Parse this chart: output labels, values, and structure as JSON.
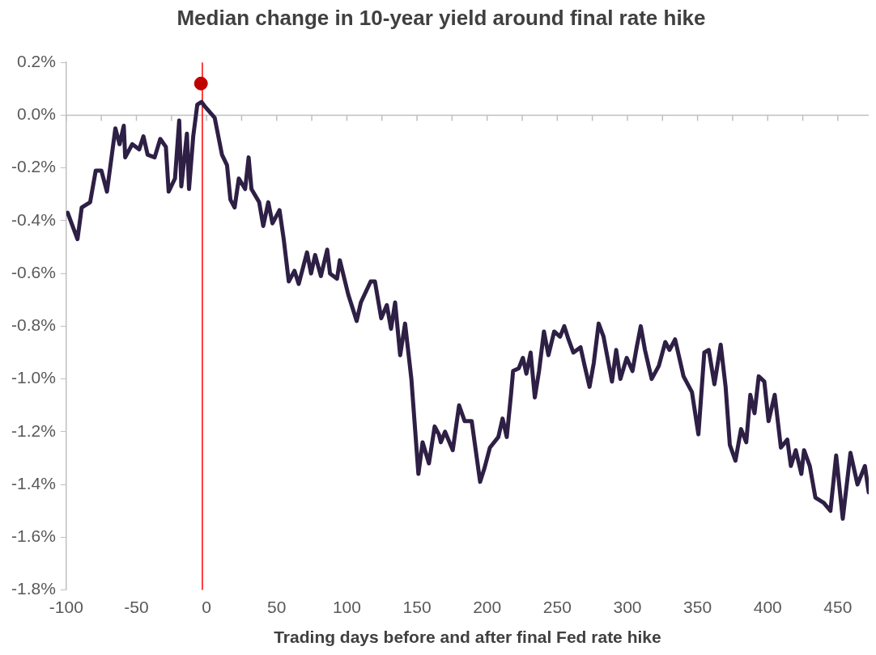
{
  "chart_data": {
    "type": "line",
    "title": "Median change in 10-year yield around final rate hike",
    "xlabel": "Trading days before and after final Fed rate hike",
    "xlim": [
      -100,
      472
    ],
    "ylim": [
      -1.8,
      0.2
    ],
    "xticks": [
      -100,
      {
        "value": -75,
        "label": null
      },
      -50,
      {
        "value": -25,
        "label": null
      },
      0,
      {
        "value": 25,
        "label": null
      },
      50,
      {
        "value": 75,
        "label": null
      },
      100,
      {
        "value": 125,
        "label": null
      },
      150,
      {
        "value": 175,
        "label": null
      },
      200,
      {
        "value": 225,
        "label": null
      },
      250,
      {
        "value": 275,
        "label": null
      },
      300,
      {
        "value": 325,
        "label": null
      },
      350,
      {
        "value": 375,
        "label": null
      },
      400,
      {
        "value": 425,
        "label": null
      },
      450
    ],
    "yticks": [
      {
        "value": 0.2,
        "label": "0.2%"
      },
      {
        "value": 0,
        "label": "0.0%"
      },
      {
        "value": -0.2,
        "label": "-0.2%"
      },
      {
        "value": -0.4,
        "label": "-0.4%"
      },
      {
        "value": -0.6,
        "label": "-0.6%"
      },
      {
        "value": -0.8,
        "label": "-0.8%"
      },
      {
        "value": -1.0,
        "label": "-1.0%"
      },
      {
        "value": -1.2,
        "label": "-1.2%"
      },
      {
        "value": -1.4,
        "label": "-1.4%"
      },
      {
        "value": -1.6,
        "label": "-1.6%"
      },
      {
        "value": -1.8,
        "label": "-1.8%"
      }
    ],
    "legend": false,
    "marker": "none",
    "line_style": "solid",
    "ref_lines": [
      {
        "axis": "y",
        "value": 0,
        "color": "#bfbfbf"
      },
      {
        "axis": "x",
        "value": -3,
        "color": "#ff0000"
      }
    ],
    "series": [
      {
        "color": "#2e1f45",
        "x": [
          -99,
          -92,
          -89,
          -83,
          -79,
          -75,
          -71,
          -65,
          -62,
          -59,
          -58,
          -53,
          -48,
          -45,
          -42,
          -37,
          -33,
          -29,
          -27,
          -22.5,
          -19.5,
          -18,
          -14,
          -12.5,
          -9.5,
          -6.6,
          -3.6,
          -0.7,
          5.8,
          11,
          14.6,
          17,
          20,
          23,
          27.5,
          30,
          32,
          37.5,
          40.4,
          44,
          47,
          52,
          55,
          58.6,
          62.7,
          65.7,
          71.6,
          74.5,
          77.4,
          81.5,
          86,
          88,
          93,
          95,
          101,
          107,
          110,
          117,
          120,
          124.5,
          128.5,
          131.5,
          134.4,
          138,
          141.5,
          146,
          151,
          154,
          158.5,
          162.6,
          165.6,
          167,
          170,
          175.5,
          180,
          184,
          189,
          195,
          198,
          202,
          208,
          211,
          214,
          217,
          218.5,
          222.5,
          225.5,
          228,
          231,
          234,
          237,
          240.5,
          243.7,
          247.8,
          252,
          255,
          258,
          261.5,
          266.6,
          269.5,
          273,
          276,
          279.5,
          283,
          289,
          292,
          295,
          299.5,
          303.6,
          306.6,
          309.5,
          312.5,
          317.3,
          322.4,
          327,
          330,
          334,
          340,
          346,
          350.6,
          354.8,
          358,
          362,
          366.5,
          370,
          373,
          377,
          381,
          384.7,
          387.6,
          390.6,
          393.6,
          397.6,
          400.6,
          405,
          409.4,
          414,
          416.5,
          420,
          424,
          425.9,
          430,
          434,
          440,
          444.7,
          448.8,
          453.5,
          459,
          464,
          469.3,
          472
        ],
        "values": [
          -0.37,
          -0.47,
          -0.35,
          -0.33,
          -0.21,
          -0.21,
          -0.29,
          -0.05,
          -0.11,
          -0.04,
          -0.16,
          -0.11,
          -0.13,
          -0.08,
          -0.15,
          -0.16,
          -0.09,
          -0.12,
          -0.29,
          -0.24,
          -0.02,
          -0.27,
          -0.07,
          -0.28,
          -0.08,
          0.04,
          0.05,
          0.03,
          -0.01,
          -0.15,
          -0.19,
          -0.32,
          -0.35,
          -0.24,
          -0.28,
          -0.16,
          -0.28,
          -0.33,
          -0.42,
          -0.33,
          -0.41,
          -0.36,
          -0.47,
          -0.63,
          -0.59,
          -0.64,
          -0.52,
          -0.6,
          -0.53,
          -0.61,
          -0.51,
          -0.6,
          -0.62,
          -0.55,
          -0.68,
          -0.78,
          -0.71,
          -0.63,
          -0.63,
          -0.77,
          -0.72,
          -0.81,
          -0.71,
          -0.91,
          -0.79,
          -1.0,
          -1.36,
          -1.24,
          -1.32,
          -1.18,
          -1.21,
          -1.24,
          -1.2,
          -1.27,
          -1.1,
          -1.16,
          -1.16,
          -1.39,
          -1.34,
          -1.26,
          -1.22,
          -1.15,
          -1.22,
          -1.06,
          -0.97,
          -0.96,
          -0.92,
          -0.98,
          -0.9,
          -1.07,
          -0.97,
          -0.82,
          -0.91,
          -0.82,
          -0.84,
          -0.8,
          -0.85,
          -0.9,
          -0.88,
          -0.95,
          -1.03,
          -0.94,
          -0.79,
          -0.84,
          -1.01,
          -0.89,
          -1.0,
          -0.92,
          -0.97,
          -0.88,
          -0.8,
          -0.89,
          -1.0,
          -0.95,
          -0.86,
          -0.89,
          -0.85,
          -0.99,
          -1.05,
          -1.21,
          -0.9,
          -0.89,
          -1.02,
          -0.87,
          -1.03,
          -1.25,
          -1.31,
          -1.19,
          -1.24,
          -1.06,
          -1.13,
          -0.99,
          -1.01,
          -1.16,
          -1.06,
          -1.26,
          -1.23,
          -1.33,
          -1.27,
          -1.36,
          -1.27,
          -1.33,
          -1.45,
          -1.47,
          -1.5,
          -1.29,
          -1.53,
          -1.28,
          -1.4,
          -1.33,
          -1.43
        ]
      },
      {
        "type": "scatter",
        "color": "#c00000",
        "marker": "circle",
        "x": [
          -4
        ],
        "values": [
          0.12
        ]
      }
    ]
  }
}
